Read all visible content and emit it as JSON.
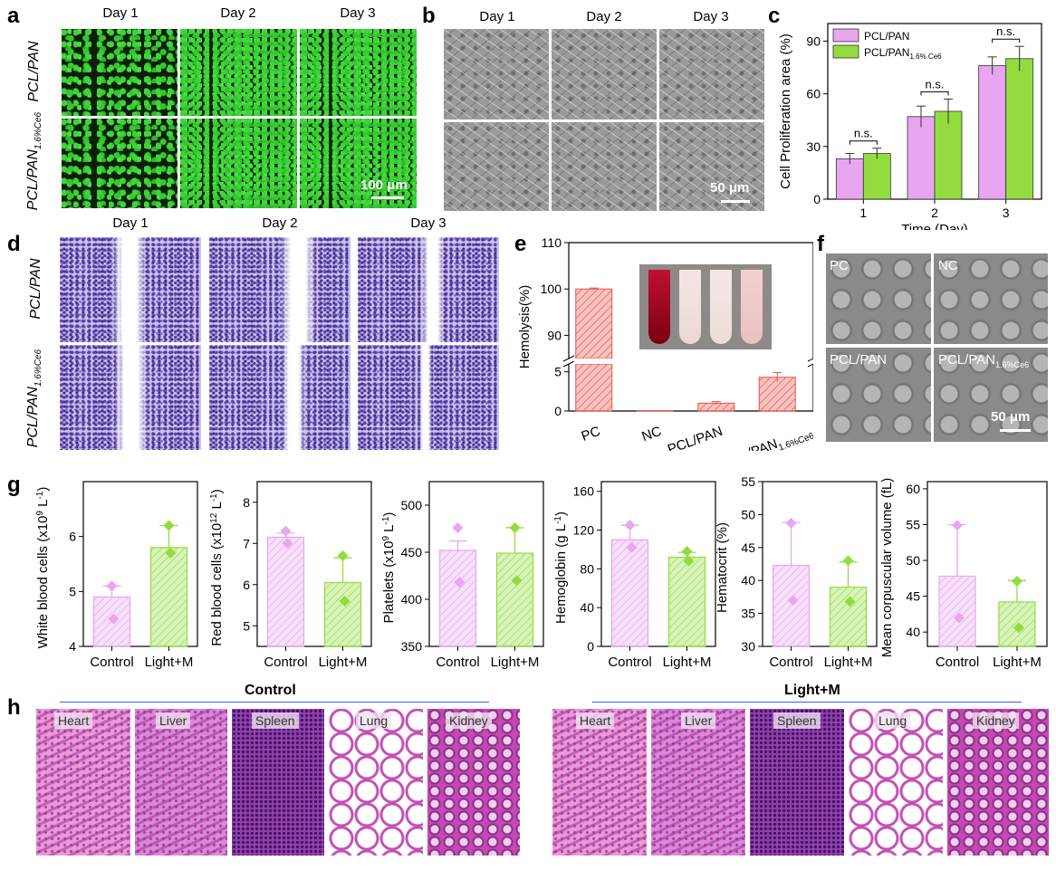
{
  "panel_labels": [
    "a",
    "b",
    "c",
    "d",
    "e",
    "f",
    "g",
    "h"
  ],
  "days": [
    "Day 1",
    "Day 2",
    "Day 3"
  ],
  "group_a": "PCL/PAN",
  "group_b_main": "PCL/PAN",
  "group_b_sub": "1.6%Ce6",
  "scale_a": "100 μm",
  "scale_b": "50 μm",
  "scale_f": "50 μm",
  "sem_labels": {
    "pc": "PC",
    "nc": "NC",
    "pcl": "PCL/PAN",
    "ce6_main": "PCL/PAN",
    "ce6_sub": "1.6%Ce6"
  },
  "organs": [
    "Heart",
    "Liver",
    "Spleen",
    "Lung",
    "Kidney"
  ],
  "h_groups": {
    "control": "Control",
    "light": "Light+M"
  },
  "colors": {
    "pink": "#e7a6ef",
    "green": "#92dc40",
    "red": "#e8534a"
  },
  "chart_data": [
    {
      "id": "c",
      "type": "bar",
      "categories": [
        "1",
        "2",
        "3"
      ],
      "series": [
        {
          "name": "PCL/PAN",
          "values": [
            23,
            47,
            76
          ],
          "errors": [
            3,
            6,
            5
          ]
        },
        {
          "name": "PCL/PAN",
          "name_sub": "1.6% Ce6",
          "values": [
            26,
            50,
            80
          ],
          "errors": [
            3,
            7,
            7
          ]
        }
      ],
      "annotations": [
        "n.s.",
        "n.s.",
        "n.s."
      ],
      "xlabel": "Time (Day)",
      "ylabel": "Cell Proliferation area (%)",
      "ylim": [
        0,
        100
      ],
      "yticks": [
        "0",
        "30",
        "60",
        "90"
      ],
      "legend_position": "top-left"
    },
    {
      "id": "e",
      "type": "bar",
      "categories": [
        "PC",
        "NC",
        "PCL/PAN",
        "PCL/PAN"
      ],
      "category_sub": [
        "",
        "",
        "",
        "1.6%Ce6"
      ],
      "values": [
        100,
        0.05,
        1.0,
        4.3
      ],
      "errors": [
        0.2,
        0,
        0.2,
        0.6
      ],
      "ylabel": "Hemolysis(%)",
      "ybreak": [
        6,
        85
      ],
      "yticks": [
        "0",
        "5",
        "90",
        "100",
        "110"
      ],
      "ylim": [
        0,
        110
      ]
    },
    {
      "id": "g1",
      "type": "bar",
      "categories": [
        "Control",
        "Light+M"
      ],
      "values": [
        4.9,
        5.8
      ],
      "errors": [
        0.2,
        0.4
      ],
      "points": [
        [
          5.1,
          4.5
        ],
        [
          6.2,
          5.7
        ]
      ],
      "ylabel_main": "White blood cells (x10",
      "ylabel_sup": "9",
      "ylabel_tail": " L",
      "ylabel_sup2": "-1",
      "ylabel_end": ")",
      "ylim": [
        4,
        7
      ],
      "yticks": [
        "4",
        "5",
        "6"
      ]
    },
    {
      "id": "g2",
      "type": "bar",
      "categories": [
        "Control",
        "Light+M"
      ],
      "values": [
        7.15,
        6.05
      ],
      "errors": [
        0.1,
        0.6
      ],
      "points": [
        [
          7.3,
          7.0
        ],
        [
          6.7,
          5.6
        ]
      ],
      "ylabel_main": "Red blood cells (x10",
      "ylabel_sup": "12",
      "ylabel_tail": " L",
      "ylabel_sup2": "-1",
      "ylabel_end": ")",
      "ylim": [
        4.5,
        8.5
      ],
      "yticks": [
        "5",
        "6",
        "7",
        "8"
      ]
    },
    {
      "id": "g3",
      "type": "bar",
      "categories": [
        "Control",
        "Light+M"
      ],
      "values": [
        452,
        449
      ],
      "errors": [
        10,
        27
      ],
      "points": [
        [
          476,
          418
        ],
        [
          476,
          420
        ]
      ],
      "ylabel_main": "Platelets (x10",
      "ylabel_sup": "9",
      "ylabel_tail": " L",
      "ylabel_sup2": "-1",
      "ylabel_end": ")",
      "ylim": [
        350,
        525
      ],
      "yticks": [
        "350",
        "400",
        "450",
        "500"
      ]
    },
    {
      "id": "g4",
      "type": "bar",
      "categories": [
        "Control",
        "Light+M"
      ],
      "values": [
        110,
        92
      ],
      "errors": [
        15,
        5
      ],
      "points": [
        [
          125,
          102
        ],
        [
          98,
          88
        ]
      ],
      "ylabel_main": "Hemoglobin (g L",
      "ylabel_sup": "",
      "ylabel_tail": "",
      "ylabel_sup2": "-1",
      "ylabel_end": ")",
      "ylim": [
        0,
        170
      ],
      "yticks": [
        "0",
        "40",
        "80",
        "120",
        "160"
      ]
    },
    {
      "id": "g5",
      "type": "bar",
      "categories": [
        "Control",
        "Light+M"
      ],
      "values": [
        42.3,
        39.0
      ],
      "errors": [
        6.5,
        3.8
      ],
      "points": [
        [
          48.7,
          37.0
        ],
        [
          43.0,
          36.8
        ]
      ],
      "ylabel_main": "Hematocrit (%)",
      "ylabel_sup": "",
      "ylabel_tail": "",
      "ylabel_sup2": "",
      "ylabel_end": "",
      "ylim": [
        30,
        55
      ],
      "yticks": [
        "30",
        "35",
        "40",
        "45",
        "50",
        "55"
      ]
    },
    {
      "id": "g6",
      "type": "bar",
      "categories": [
        "Control",
        "Light+M"
      ],
      "values": [
        47.8,
        44.2
      ],
      "errors": [
        7.2,
        3.0
      ],
      "points": [
        [
          54.9,
          42.0
        ],
        [
          47.1,
          40.6
        ]
      ],
      "ylabel_main": "Mean corpuscular volume (fL)",
      "ylabel_sup": "",
      "ylabel_tail": "",
      "ylabel_sup2": "",
      "ylabel_end": "",
      "ylim": [
        38,
        61
      ],
      "yticks": [
        "40",
        "45",
        "50",
        "55",
        "60"
      ]
    }
  ]
}
